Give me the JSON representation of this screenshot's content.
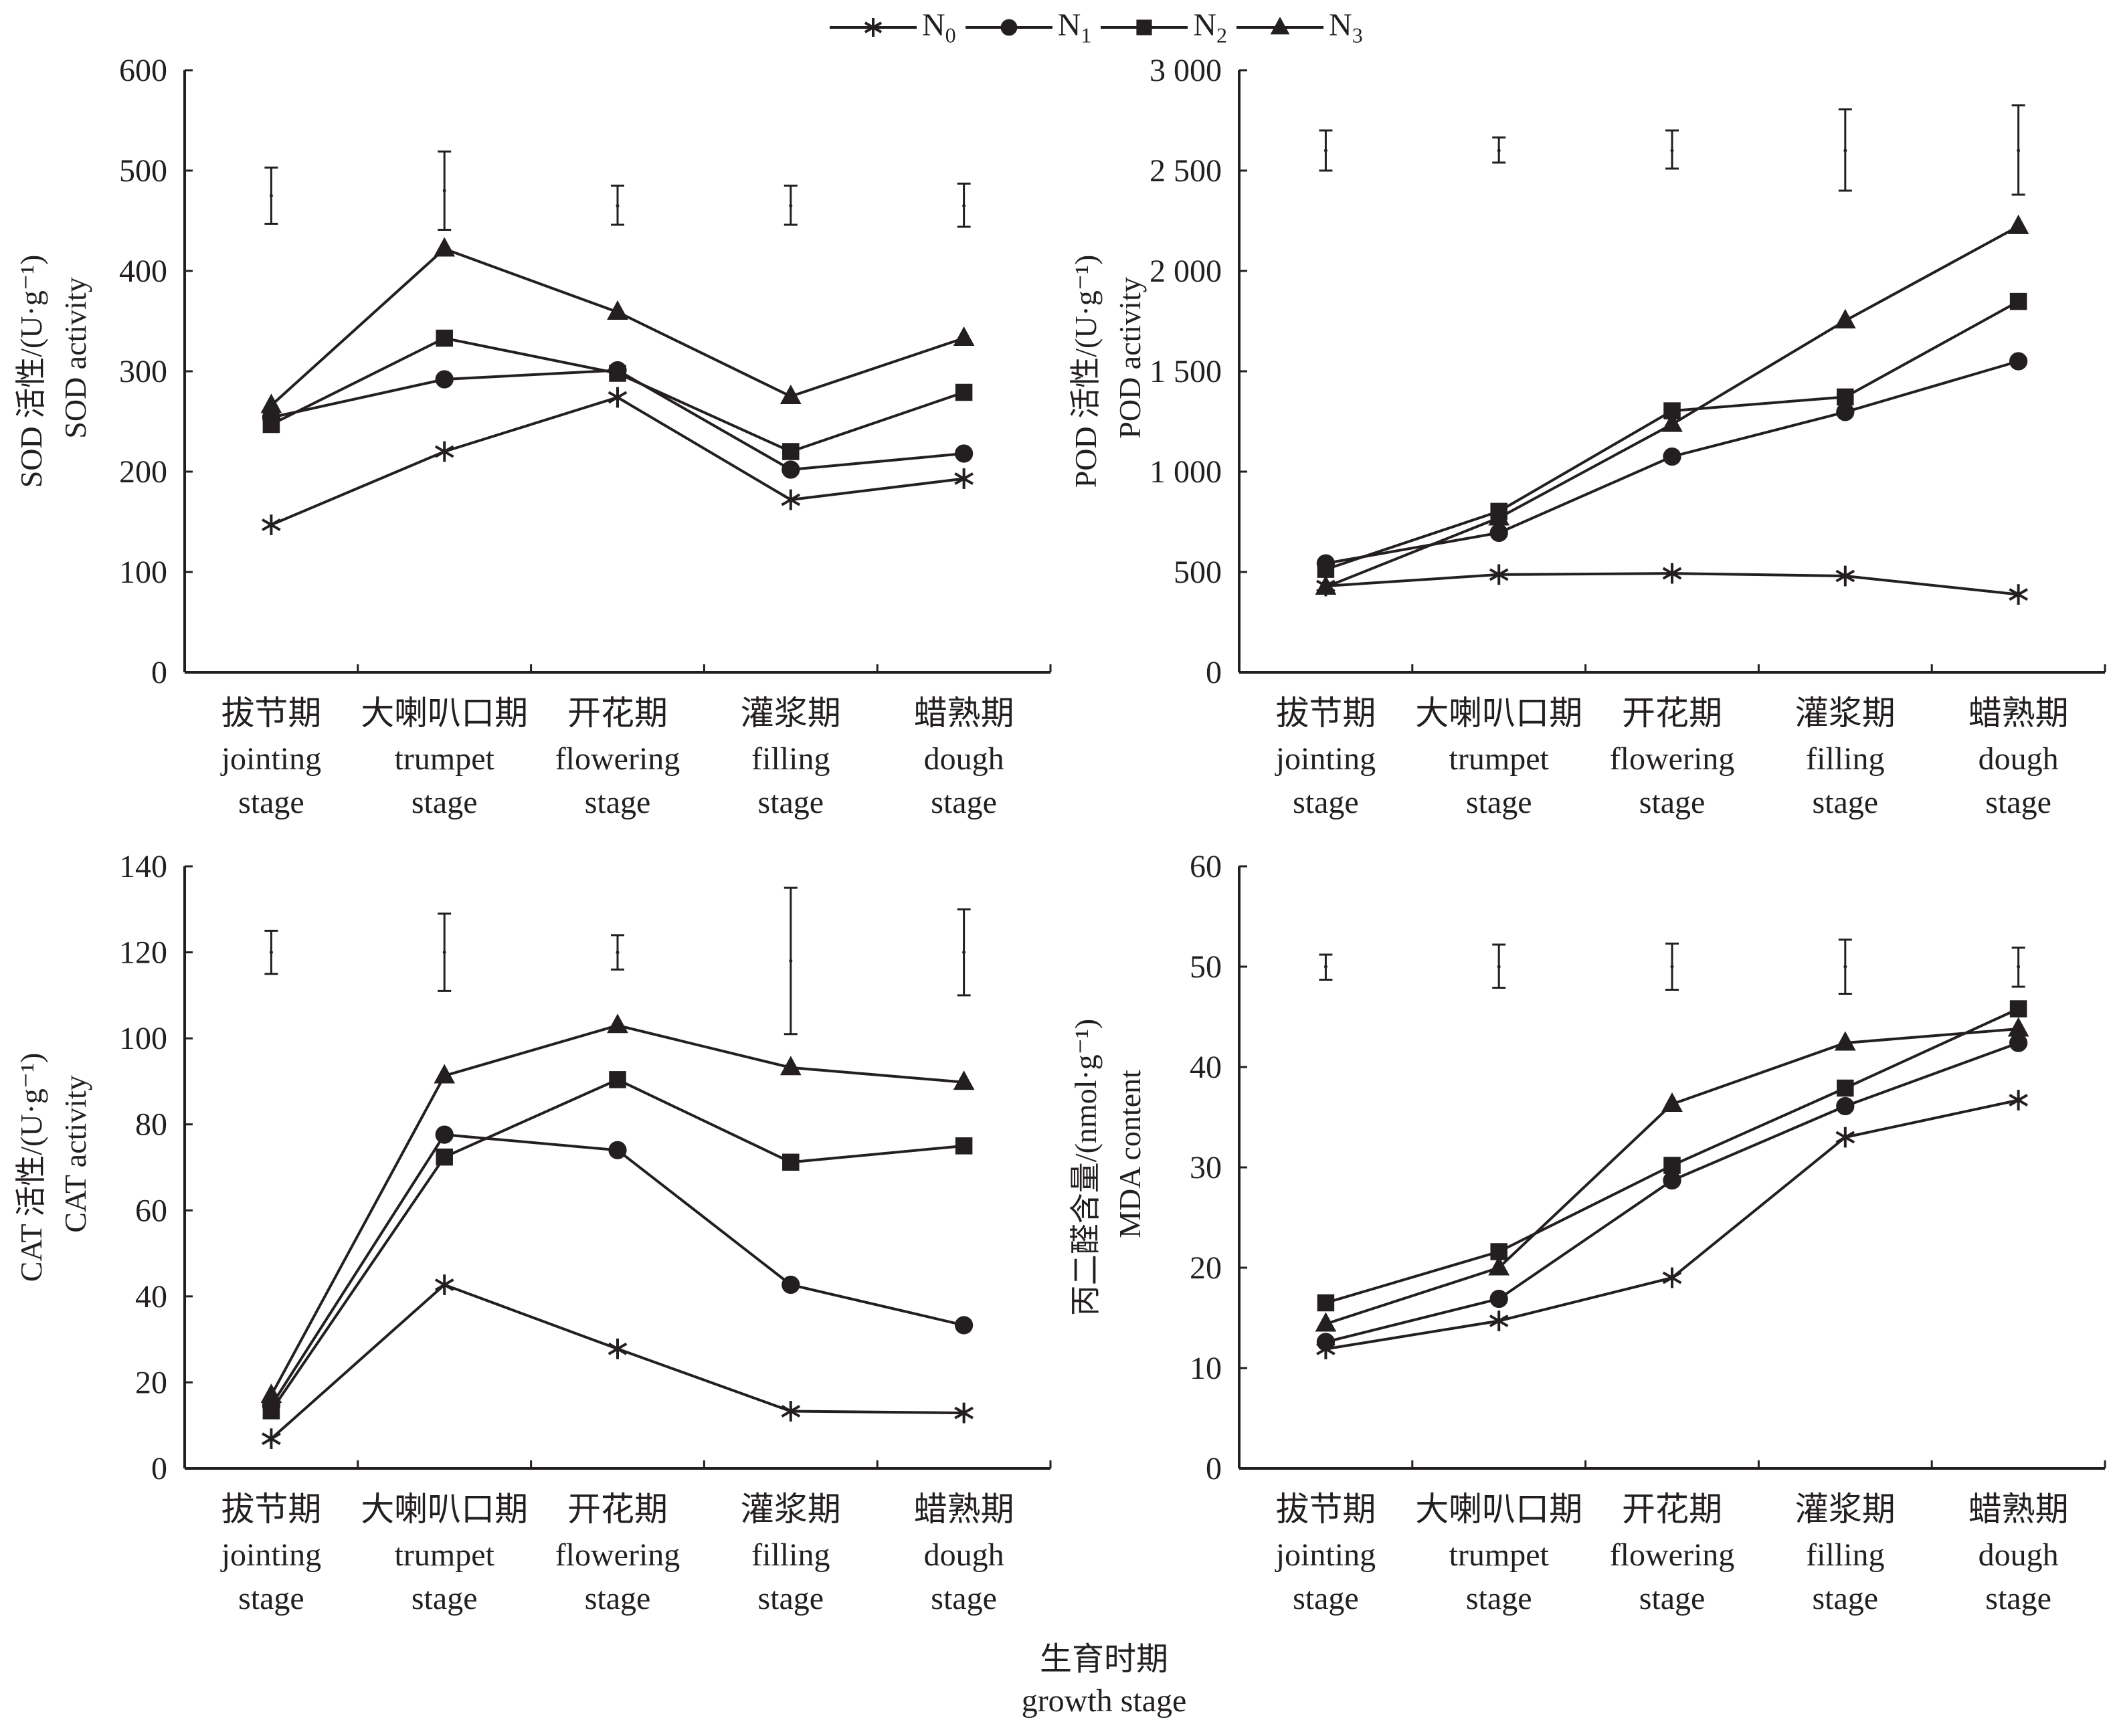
{
  "legend": [
    {
      "name": "N",
      "sub": "0",
      "marker": "star"
    },
    {
      "name": "N",
      "sub": "1",
      "marker": "circle"
    },
    {
      "name": "N",
      "sub": "2",
      "marker": "square"
    },
    {
      "name": "N",
      "sub": "3",
      "marker": "triangle"
    }
  ],
  "xaxis_title": {
    "zh": "生育时期",
    "en": "growth stage"
  },
  "chart_data": [
    {
      "type": "line",
      "title": "SOD",
      "ylabel_zh": "SOD 活性/(U·g⁻¹)",
      "ylabel_en": "SOD activity",
      "ylim": [
        0,
        600
      ],
      "yticks": [
        0,
        100,
        200,
        300,
        400,
        500,
        600
      ],
      "ytick_labels": [
        "0",
        "100",
        "200",
        "300",
        "400",
        "500",
        "600"
      ],
      "categories_zh": [
        "拔节期",
        "大喇叭口期",
        "开花期",
        "灌浆期",
        "蜡熟期"
      ],
      "categories_en": [
        [
          "jointing",
          "stage"
        ],
        [
          "trumpet",
          "stage"
        ],
        [
          "flowering",
          "stage"
        ],
        [
          "filling",
          "stage"
        ],
        [
          "dough",
          "stage"
        ]
      ],
      "series": [
        {
          "name": "N0",
          "marker": "star",
          "values": [
            147,
            220,
            274,
            172,
            193
          ]
        },
        {
          "name": "N1",
          "marker": "circle",
          "values": [
            254,
            292,
            301,
            202,
            218
          ]
        },
        {
          "name": "N2",
          "marker": "square",
          "values": [
            247,
            333,
            298,
            220,
            279
          ]
        },
        {
          "name": "N3",
          "marker": "triangle",
          "values": [
            266,
            422,
            359,
            275,
            333
          ]
        }
      ],
      "error_bars": [
        {
          "center": 475,
          "low": 447,
          "high": 503
        },
        {
          "center": 480,
          "low": 441,
          "high": 519
        },
        {
          "center": 465,
          "low": 446,
          "high": 485
        },
        {
          "center": 465,
          "low": 446,
          "high": 485
        },
        {
          "center": 465,
          "low": 444,
          "high": 487
        }
      ]
    },
    {
      "type": "line",
      "title": "POD",
      "ylabel_zh": "POD 活性/(U·g⁻¹)",
      "ylabel_en": "POD activity",
      "ylim": [
        0,
        3000
      ],
      "yticks": [
        0,
        500,
        1000,
        1500,
        2000,
        2500,
        3000
      ],
      "ytick_labels": [
        "0",
        "500",
        "1 000",
        "1 500",
        "2 000",
        "2 500",
        "3 000"
      ],
      "categories_zh": [
        "拔节期",
        "大喇叭口期",
        "开花期",
        "灌浆期",
        "蜡熟期"
      ],
      "categories_en": [
        [
          "jointing",
          "stage"
        ],
        [
          "trumpet",
          "stage"
        ],
        [
          "flowering",
          "stage"
        ],
        [
          "filling",
          "stage"
        ],
        [
          "dough",
          "stage"
        ]
      ],
      "series": [
        {
          "name": "N0",
          "marker": "star",
          "values": [
            430,
            487,
            493,
            480,
            388
          ]
        },
        {
          "name": "N1",
          "marker": "circle",
          "values": [
            543,
            695,
            1075,
            1297,
            1550
          ]
        },
        {
          "name": "N2",
          "marker": "square",
          "values": [
            513,
            802,
            1303,
            1372,
            1848
          ]
        },
        {
          "name": "N3",
          "marker": "triangle",
          "values": [
            425,
            770,
            1236,
            1752,
            2222
          ]
        }
      ],
      "error_bars": [
        {
          "center": 2600,
          "low": 2500,
          "high": 2700
        },
        {
          "center": 2600,
          "low": 2540,
          "high": 2665
        },
        {
          "center": 2600,
          "low": 2510,
          "high": 2700
        },
        {
          "center": 2600,
          "low": 2400,
          "high": 2805
        },
        {
          "center": 2600,
          "low": 2380,
          "high": 2825
        }
      ]
    },
    {
      "type": "line",
      "title": "CAT",
      "ylabel_zh": "CAT 活性/(U·g⁻¹)",
      "ylabel_en": "CAT activity",
      "ylim": [
        0,
        140
      ],
      "yticks": [
        0,
        20,
        40,
        60,
        80,
        100,
        120,
        140
      ],
      "ytick_labels": [
        "0",
        "20",
        "40",
        "60",
        "80",
        "100",
        "120",
        "140"
      ],
      "categories_zh": [
        "拔节期",
        "大喇叭口期",
        "开花期",
        "灌浆期",
        "蜡熟期"
      ],
      "categories_en": [
        [
          "jointing",
          "stage"
        ],
        [
          "trumpet",
          "stage"
        ],
        [
          "flowering",
          "stage"
        ],
        [
          "filling",
          "stage"
        ],
        [
          "dough",
          "stage"
        ]
      ],
      "series": [
        {
          "name": "N0",
          "marker": "star",
          "values": [
            6.9,
            42.7,
            27.8,
            13.3,
            12.9
          ]
        },
        {
          "name": "N1",
          "marker": "circle",
          "values": [
            14.6,
            77.6,
            74.0,
            42.7,
            33.3
          ]
        },
        {
          "name": "N2",
          "marker": "square",
          "values": [
            13.4,
            72.4,
            90.4,
            71.2,
            75.0
          ]
        },
        {
          "name": "N3",
          "marker": "triangle",
          "values": [
            17.0,
            91.3,
            103.0,
            93.2,
            89.8
          ]
        }
      ],
      "error_bars": [
        {
          "center": 120,
          "low": 115,
          "high": 125
        },
        {
          "center": 120,
          "low": 111,
          "high": 129
        },
        {
          "center": 120,
          "low": 116,
          "high": 124
        },
        {
          "center": 118,
          "low": 101,
          "high": 135
        },
        {
          "center": 120,
          "low": 110,
          "high": 130
        }
      ]
    },
    {
      "type": "line",
      "title": "MDA",
      "ylabel_zh": "丙二醛含量/(nmol·g⁻¹)",
      "ylabel_en": "MDA content",
      "ylim": [
        0,
        60
      ],
      "yticks": [
        0,
        10,
        20,
        30,
        40,
        50,
        60
      ],
      "ytick_labels": [
        "0",
        "10",
        "20",
        "30",
        "40",
        "50",
        "60"
      ],
      "categories_zh": [
        "拔节期",
        "大喇叭口期",
        "开花期",
        "灌浆期",
        "蜡熟期"
      ],
      "categories_en": [
        [
          "jointing",
          "stage"
        ],
        [
          "trumpet",
          "stage"
        ],
        [
          "flowering",
          "stage"
        ],
        [
          "filling",
          "stage"
        ],
        [
          "dough",
          "stage"
        ]
      ],
      "series": [
        {
          "name": "N0",
          "marker": "star",
          "values": [
            11.9,
            14.7,
            19.0,
            33.0,
            36.7
          ]
        },
        {
          "name": "N1",
          "marker": "circle",
          "values": [
            12.6,
            16.9,
            28.7,
            36.1,
            42.4
          ]
        },
        {
          "name": "N2",
          "marker": "square",
          "values": [
            16.5,
            21.6,
            30.2,
            37.9,
            45.8
          ]
        },
        {
          "name": "N3",
          "marker": "triangle",
          "values": [
            14.4,
            20.0,
            36.3,
            42.4,
            43.8
          ]
        }
      ],
      "error_bars": [
        {
          "center": 50,
          "low": 48.7,
          "high": 51.2
        },
        {
          "center": 50,
          "low": 47.9,
          "high": 52.2
        },
        {
          "center": 50,
          "low": 47.7,
          "high": 52.3
        },
        {
          "center": 50,
          "low": 47.3,
          "high": 52.7
        },
        {
          "center": 50,
          "low": 48.0,
          "high": 51.9
        }
      ]
    }
  ]
}
